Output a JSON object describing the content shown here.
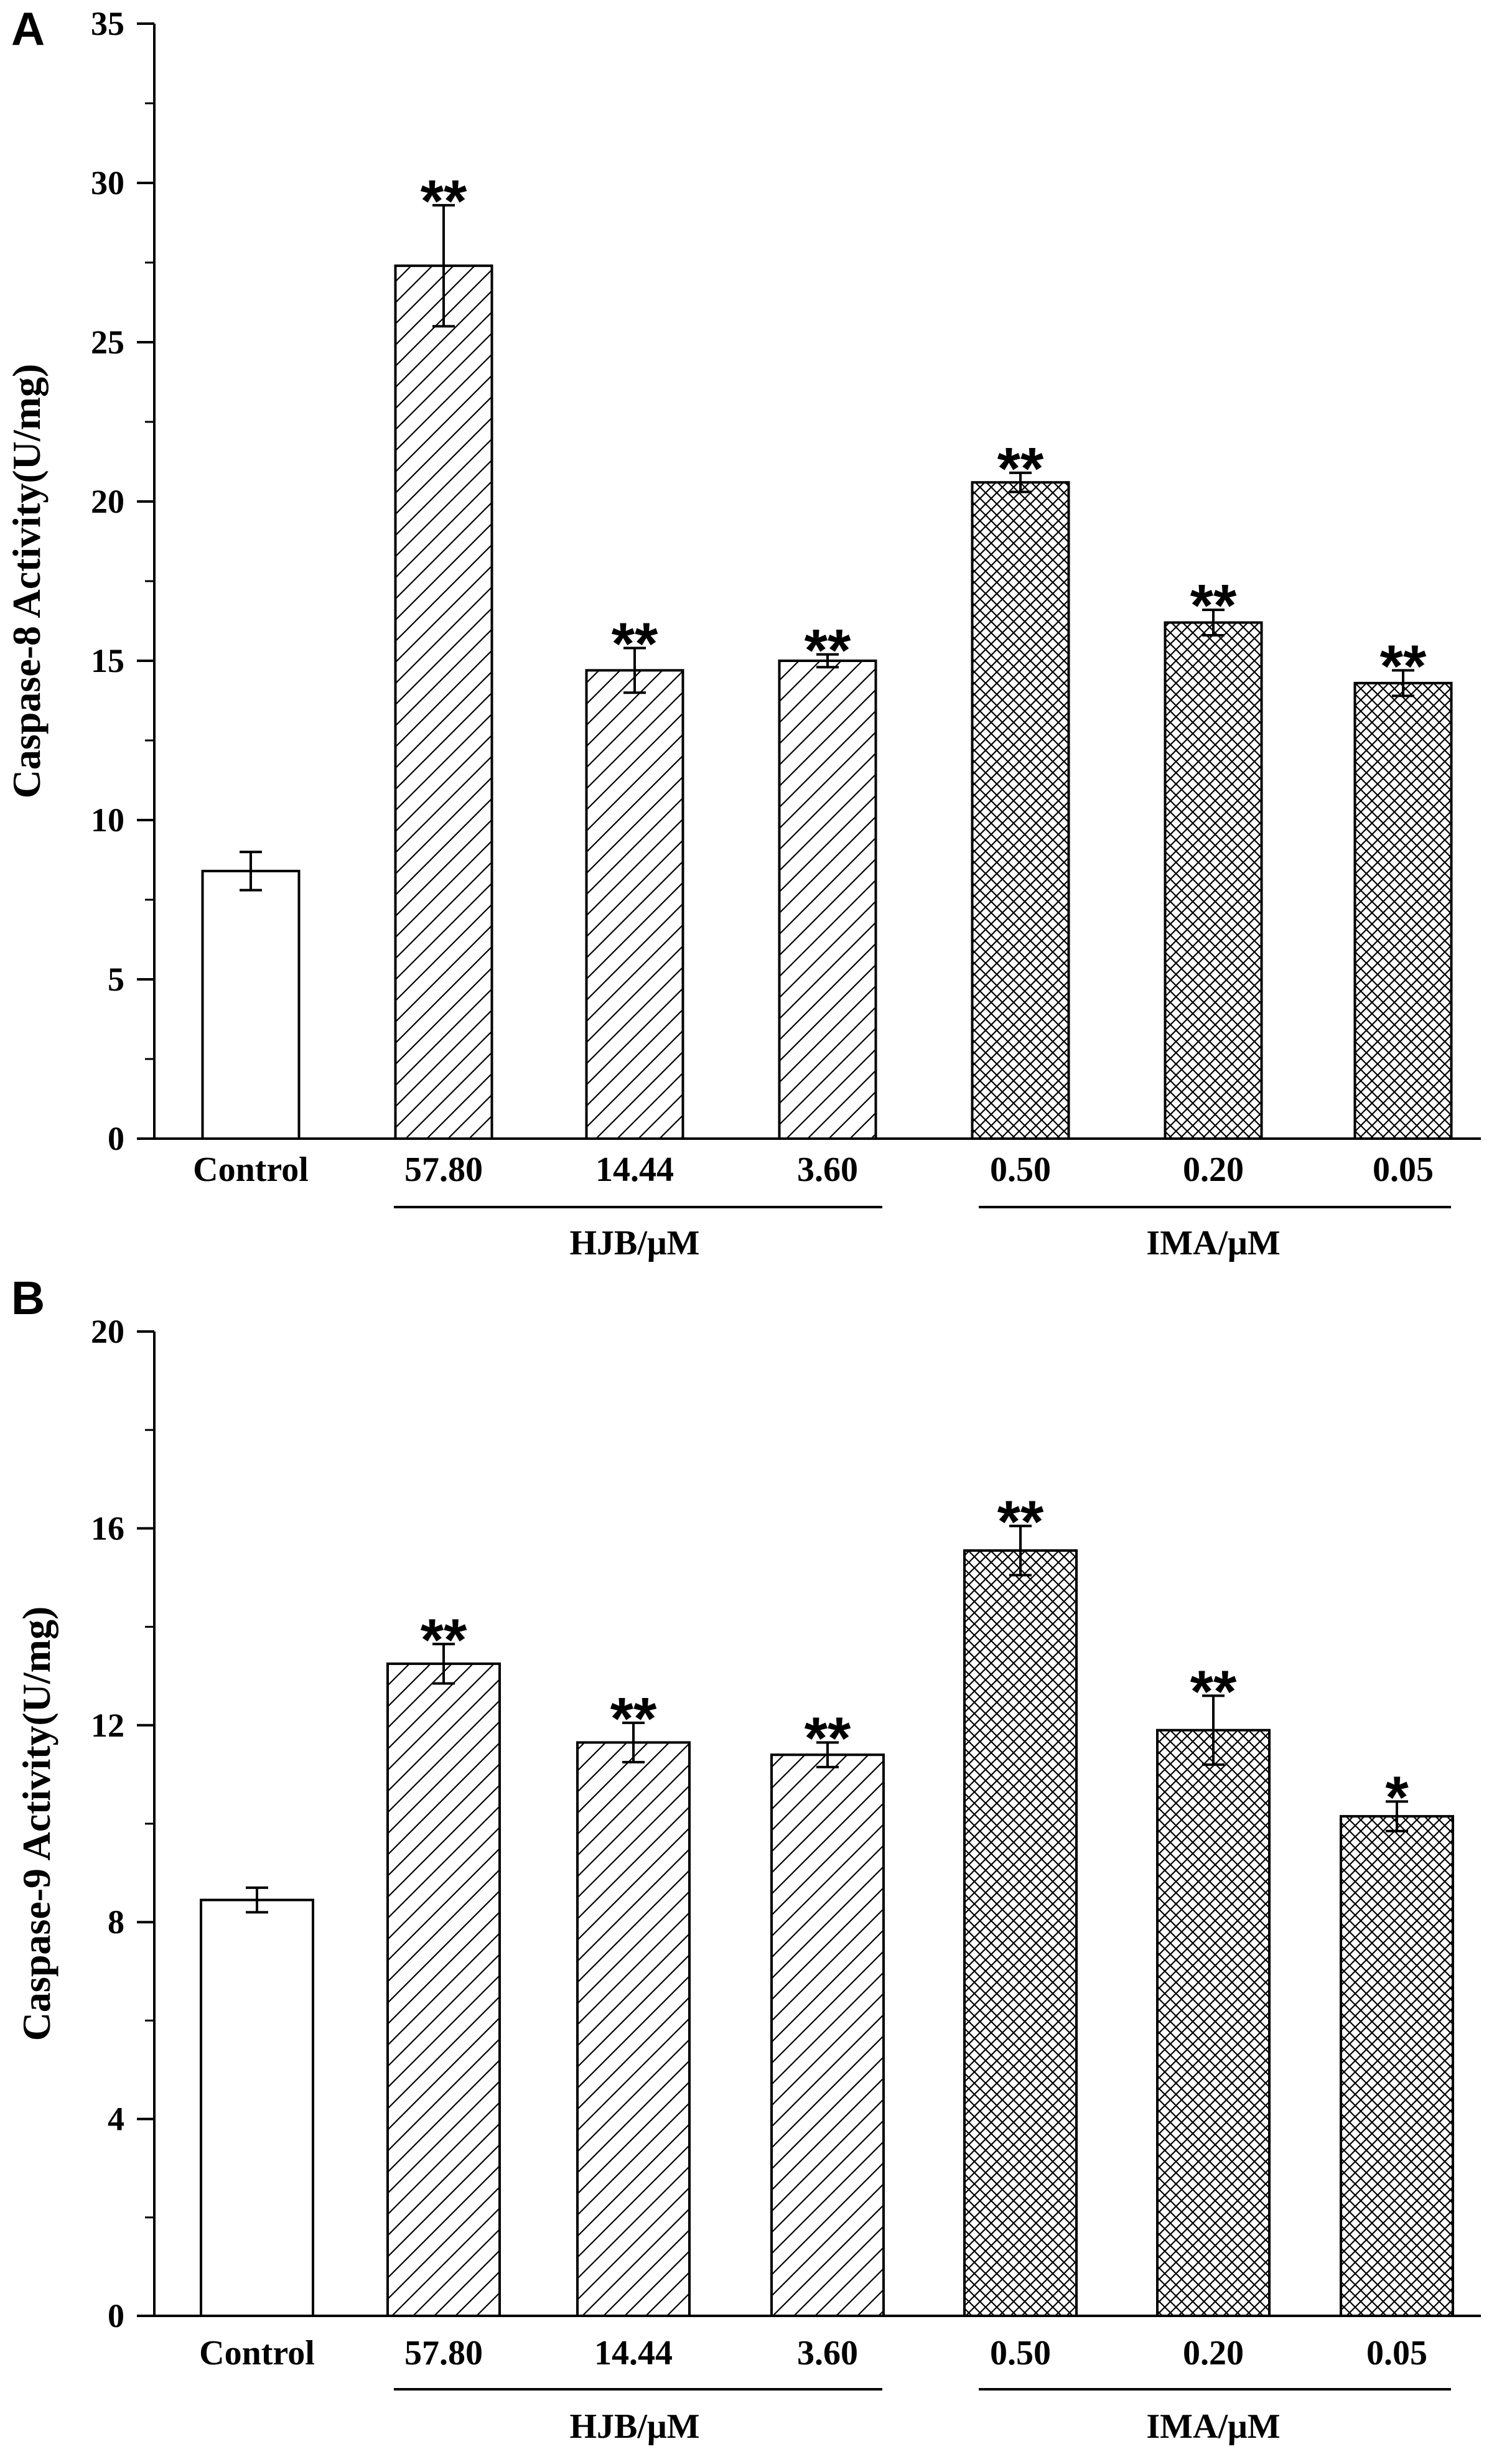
{
  "chart_data": [
    {
      "panel": "A",
      "type": "bar",
      "ylabel": "Caspase-8 Activity(U/mg)",
      "ylim": [
        0,
        35
      ],
      "yticks": [
        0,
        5,
        10,
        15,
        20,
        25,
        30,
        35
      ],
      "categories": [
        "Control",
        "57.80",
        "14.44",
        "3.60",
        "0.50",
        "0.20",
        "0.05"
      ],
      "values": [
        8.4,
        27.4,
        14.7,
        15.0,
        20.6,
        16.2,
        14.3
      ],
      "errors": [
        0.6,
        1.9,
        0.7,
        0.2,
        0.3,
        0.4,
        0.4
      ],
      "significance": [
        "",
        "**",
        "**",
        "**",
        "**",
        "**",
        "**"
      ],
      "patterns": [
        "none",
        "hatch",
        "hatch",
        "hatch",
        "crosshatch",
        "crosshatch",
        "crosshatch"
      ],
      "groups": [
        {
          "label": "HJB/μM",
          "categories": [
            "57.80",
            "14.44",
            "3.60"
          ]
        },
        {
          "label": "IMA/μM",
          "categories": [
            "0.50",
            "0.20",
            "0.05"
          ]
        }
      ]
    },
    {
      "panel": "B",
      "type": "bar",
      "ylabel": "Caspase-9 Activity(U/mg)",
      "ylim": [
        0,
        20
      ],
      "yticks": [
        0,
        4,
        8,
        12,
        16,
        20
      ],
      "categories": [
        "Control",
        "57.80",
        "14.44",
        "3.60",
        "0.50",
        "0.20",
        "0.05"
      ],
      "values": [
        8.45,
        13.25,
        11.65,
        11.4,
        15.55,
        11.9,
        10.15
      ],
      "errors": [
        0.25,
        0.4,
        0.4,
        0.25,
        0.5,
        0.7,
        0.3
      ],
      "significance": [
        "",
        "**",
        "**",
        "**",
        "**",
        "**",
        "*"
      ],
      "patterns": [
        "none",
        "hatch",
        "hatch",
        "hatch",
        "crosshatch",
        "crosshatch",
        "crosshatch"
      ],
      "groups": [
        {
          "label": "HJB/μM",
          "categories": [
            "57.80",
            "14.44",
            "3.60"
          ]
        },
        {
          "label": "IMA/μM",
          "categories": [
            "0.50",
            "0.20",
            "0.05"
          ]
        }
      ]
    }
  ]
}
